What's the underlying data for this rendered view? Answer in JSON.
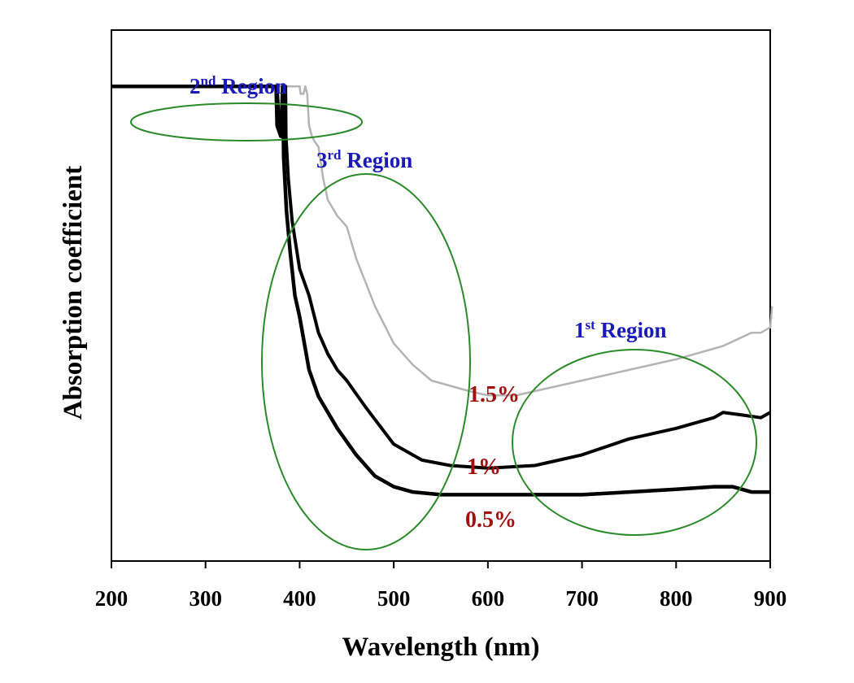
{
  "chart_data": {
    "type": "line",
    "title": "",
    "xlabel": "Wavelength (nm)",
    "ylabel": "Absorption coefficient",
    "xlim": [
      200,
      900
    ],
    "ylim": [
      0,
      1
    ],
    "xticks": [
      200,
      300,
      400,
      500,
      600,
      700,
      800,
      900
    ],
    "yticks_shown": false,
    "grid": false,
    "legend": "none",
    "series": [
      {
        "name": "1.5%",
        "color": "#b4b4b4",
        "points": [
          [
            200,
            0.894
          ],
          [
            320,
            0.894
          ],
          [
            400,
            0.894
          ],
          [
            401,
            0.88
          ],
          [
            404,
            0.88
          ],
          [
            406,
            0.894
          ],
          [
            408,
            0.88
          ],
          [
            410,
            0.82
          ],
          [
            413,
            0.8
          ],
          [
            416,
            0.79
          ],
          [
            420,
            0.78
          ],
          [
            425,
            0.72
          ],
          [
            430,
            0.68
          ],
          [
            440,
            0.65
          ],
          [
            450,
            0.63
          ],
          [
            460,
            0.57
          ],
          [
            480,
            0.48
          ],
          [
            500,
            0.41
          ],
          [
            520,
            0.37
          ],
          [
            540,
            0.34
          ],
          [
            560,
            0.33
          ],
          [
            580,
            0.32
          ],
          [
            600,
            0.312
          ],
          [
            630,
            0.312
          ],
          [
            650,
            0.32
          ],
          [
            700,
            0.34
          ],
          [
            750,
            0.36
          ],
          [
            800,
            0.38
          ],
          [
            850,
            0.405
          ],
          [
            880,
            0.43
          ],
          [
            890,
            0.43
          ],
          [
            900,
            0.44
          ],
          [
            902,
            0.48
          ]
        ]
      },
      {
        "name": "1%",
        "color": "#000000",
        "points": [
          [
            200,
            0.894
          ],
          [
            370,
            0.894
          ],
          [
            376,
            0.894
          ],
          [
            378,
            0.83
          ],
          [
            380,
            0.8
          ],
          [
            382,
            0.83
          ],
          [
            383,
            0.85
          ],
          [
            385,
            0.894
          ],
          [
            385.5,
            0.8
          ],
          [
            388,
            0.72
          ],
          [
            392,
            0.64
          ],
          [
            400,
            0.55
          ],
          [
            410,
            0.5
          ],
          [
            420,
            0.43
          ],
          [
            430,
            0.39
          ],
          [
            440,
            0.36
          ],
          [
            450,
            0.34
          ],
          [
            470,
            0.29
          ],
          [
            500,
            0.22
          ],
          [
            530,
            0.19
          ],
          [
            560,
            0.18
          ],
          [
            600,
            0.175
          ],
          [
            650,
            0.18
          ],
          [
            700,
            0.2
          ],
          [
            750,
            0.23
          ],
          [
            800,
            0.25
          ],
          [
            840,
            0.27
          ],
          [
            850,
            0.28
          ],
          [
            870,
            0.275
          ],
          [
            890,
            0.27
          ],
          [
            900,
            0.28
          ]
        ]
      },
      {
        "name": "0.5%",
        "color": "#000000",
        "points": [
          [
            200,
            0.894
          ],
          [
            370,
            0.894
          ],
          [
            375,
            0.894
          ],
          [
            376,
            0.82
          ],
          [
            380,
            0.8
          ],
          [
            382,
            0.894
          ],
          [
            383,
            0.76
          ],
          [
            386,
            0.66
          ],
          [
            390,
            0.58
          ],
          [
            395,
            0.5
          ],
          [
            400,
            0.46
          ],
          [
            410,
            0.36
          ],
          [
            420,
            0.31
          ],
          [
            440,
            0.25
          ],
          [
            460,
            0.2
          ],
          [
            480,
            0.16
          ],
          [
            500,
            0.14
          ],
          [
            520,
            0.13
          ],
          [
            550,
            0.125
          ],
          [
            600,
            0.125
          ],
          [
            650,
            0.125
          ],
          [
            700,
            0.125
          ],
          [
            750,
            0.13
          ],
          [
            800,
            0.135
          ],
          [
            840,
            0.14
          ],
          [
            860,
            0.14
          ],
          [
            880,
            0.13
          ],
          [
            900,
            0.13
          ]
        ]
      }
    ],
    "annotations": {
      "regions": [
        {
          "main": "2",
          "sup": "nd",
          "rest": " Region"
        },
        {
          "main": "3",
          "sup": "rd",
          "rest": " Region"
        },
        {
          "main": "1",
          "sup": "st",
          "rest": " Region"
        }
      ],
      "region_outline_color": "#2a8a2a",
      "region_text_color": "#1a1ab8",
      "series_label_color": "#a01010"
    }
  }
}
